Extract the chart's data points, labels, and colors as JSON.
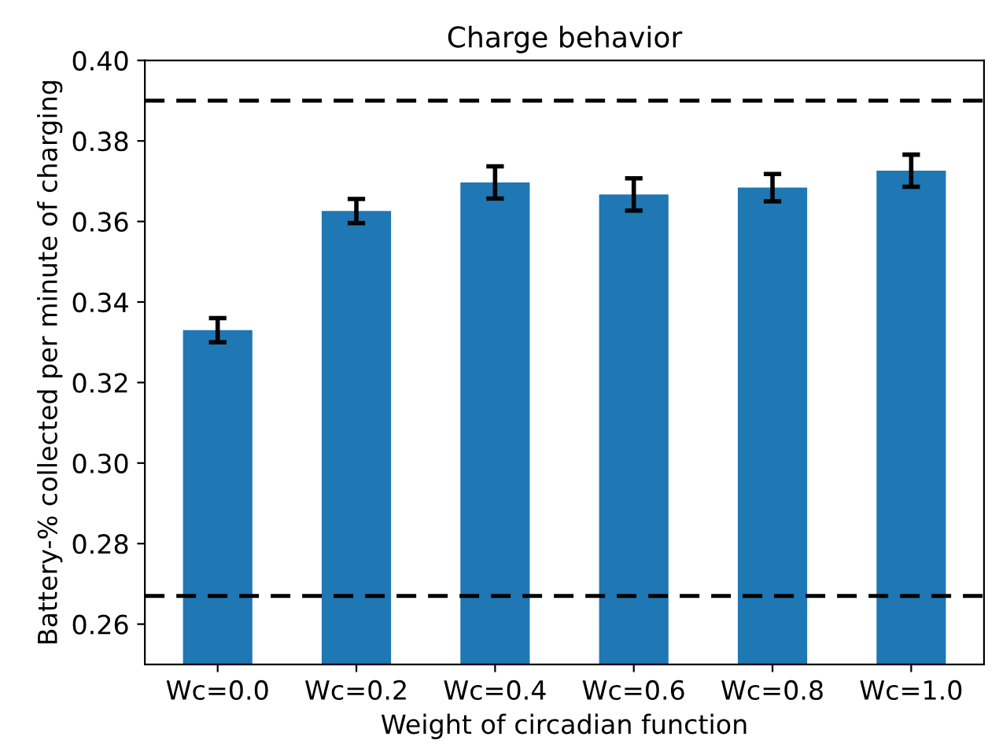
{
  "chart_data": {
    "type": "bar",
    "title": "Charge behavior",
    "xlabel": "Weight of circadian function",
    "ylabel": "Battery-% collected per minute of charging",
    "categories": [
      "Wc=0.0",
      "Wc=0.2",
      "Wc=0.4",
      "Wc=0.6",
      "Wc=0.8",
      "Wc=1.0"
    ],
    "series": [
      {
        "color": "#1f77b4",
        "values": [
          0.333,
          0.3626,
          0.3697,
          0.3667,
          0.3684,
          0.3726
        ],
        "errors": [
          0.003,
          0.003,
          0.004,
          0.004,
          0.0034,
          0.004
        ]
      }
    ],
    "ylim": [
      0.25,
      0.4
    ],
    "yticks": [
      0.26,
      0.28,
      {
        "value": 0.3,
        "label": "0.30"
      },
      0.32,
      0.34,
      0.36,
      0.38,
      {
        "value": 0.4,
        "label": "0.40"
      }
    ],
    "ref_lines": [
      {
        "axis": "y",
        "value": 0.39,
        "color": "#000000",
        "line_style": "dashed"
      },
      {
        "axis": "y",
        "value": 0.267,
        "color": "#000000",
        "line_style": "dashed"
      }
    ],
    "grid": false,
    "legend": false
  }
}
